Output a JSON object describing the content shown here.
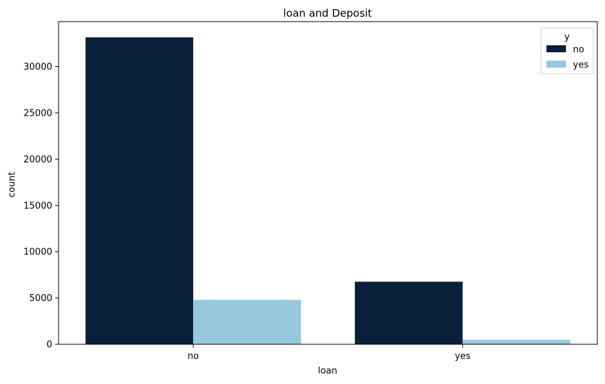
{
  "chart_data": {
    "type": "bar",
    "title": "loan and Deposit",
    "xlabel": "loan",
    "ylabel": "count",
    "categories": [
      "no",
      "yes"
    ],
    "series": [
      {
        "name": "no",
        "color": "#0a1f3a",
        "values": [
          33160,
          6760
        ]
      },
      {
        "name": "yes",
        "color": "#96c9de",
        "values": [
          4800,
          490
        ]
      }
    ],
    "ylim": [
      0,
      34860
    ],
    "yticks": [
      0,
      5000,
      10000,
      15000,
      20000,
      25000,
      30000
    ],
    "grid": false,
    "legend": {
      "title": "y",
      "position": "top-right"
    }
  }
}
